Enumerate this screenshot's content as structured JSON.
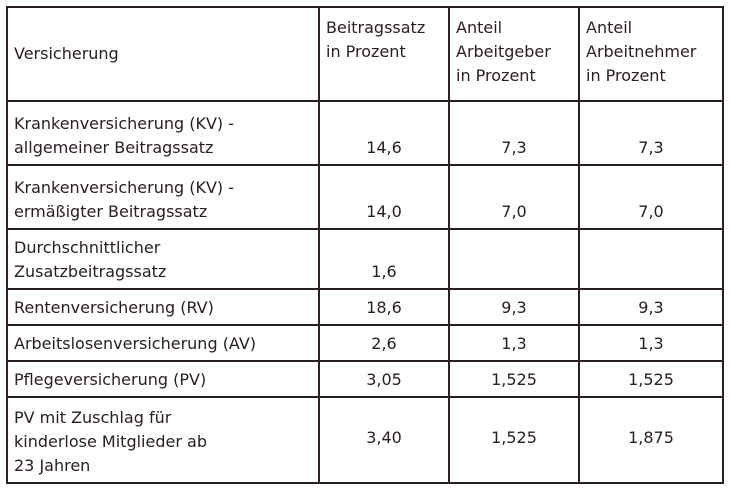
{
  "table": {
    "headers": [
      [
        "Versicherung"
      ],
      [
        "Beitragssatz",
        "in Prozent"
      ],
      [
        "Anteil",
        "Arbeitgeber",
        "in Prozent"
      ],
      [
        "Anteil",
        "Arbeitnehmer",
        "in Prozent"
      ]
    ],
    "rows": [
      {
        "name": [
          "Krankenversicherung (KV) -",
          "allgemeiner Beitragssatz"
        ],
        "beitragssatz": "14,6",
        "arbeitgeber": "7,3",
        "arbeitnehmer": "7,3"
      },
      {
        "name": [
          "Krankenversicherung (KV) -",
          "ermäßigter Beitragssatz"
        ],
        "beitragssatz": "14,0",
        "arbeitgeber": "7,0",
        "arbeitnehmer": "7,0"
      },
      {
        "name": [
          "Durchschnittlicher",
          "Zusatzbeitragssatz"
        ],
        "beitragssatz": "1,6",
        "arbeitgeber": "",
        "arbeitnehmer": ""
      },
      {
        "name": [
          "Rentenversicherung (RV)"
        ],
        "beitragssatz": "18,6",
        "arbeitgeber": "9,3",
        "arbeitnehmer": "9,3"
      },
      {
        "name": [
          "Arbeitslosenversicherung (AV)"
        ],
        "beitragssatz": "2,6",
        "arbeitgeber": "1,3",
        "arbeitnehmer": "1,3"
      },
      {
        "name": [
          "Pflegeversicherung (PV)"
        ],
        "beitragssatz": "3,05",
        "arbeitgeber": "1,525",
        "arbeitnehmer": "1,525"
      },
      {
        "name": [
          "PV mit Zuschlag für",
          "kinderlose Mitglieder ab",
          "23 Jahren"
        ],
        "beitragssatz": "3,40",
        "arbeitgeber": "1,525",
        "arbeitnehmer": "1,875"
      }
    ]
  }
}
